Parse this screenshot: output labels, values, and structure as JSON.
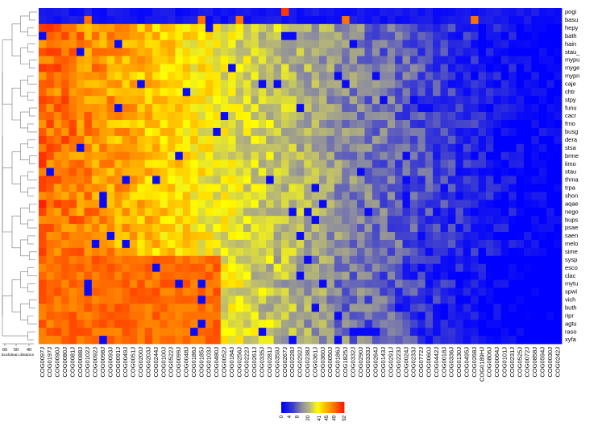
{
  "chart_data": {
    "type": "heatmap",
    "rows": [
      "pogi",
      "basu",
      "hepy",
      "bath",
      "hain",
      "stau_",
      "mypu",
      "myge",
      "mypn",
      "caje",
      "chtr",
      "stpy",
      "funu",
      "cacr",
      "frno",
      "busg",
      "dera",
      "stsa",
      "brme",
      "limo",
      "stau",
      "thma",
      "trpa",
      "shon",
      "aqae",
      "nego",
      "bups",
      "psae",
      "saen",
      "melo",
      "sime",
      "sysp",
      "esco",
      "clac",
      "mytu",
      "spwi",
      "vich",
      "buth",
      "ripr",
      "agtu",
      "raso",
      "xyfa"
    ],
    "columns": [
      "COG0097J",
      "COG0197J",
      "COG0090J",
      "COG0080J",
      "COG0081J",
      "COG0088J",
      "COG0102J",
      "COG0092J",
      "COG0098J",
      "COG0093J",
      "COG0091J",
      "COG0049J",
      "COG0051J",
      "COG0200J",
      "COG0203J",
      "COG0244J",
      "COG0100J",
      "COG0522J",
      "COG0099J",
      "COG0048J",
      "COG0186J",
      "COG0185J",
      "COG0103J",
      "COG0480J",
      "COG0052J",
      "COG0184J",
      "COG0256J",
      "COG0222J",
      "COG0261J",
      "COG0335J",
      "COG0281J",
      "COG0359J",
      "COG0267J",
      "COG0228J",
      "COG0292J",
      "COG0238J",
      "COG0361J",
      "COG0360J",
      "COG0050J",
      "COG0186J",
      "COG1825J",
      "COG0332J",
      "COG0290J",
      "COG0333J",
      "COG0264J",
      "COG0143J",
      "COG0291J",
      "COG0223J",
      "COG0024J",
      "COG0233J",
      "COG0772J",
      "COG0060J",
      "COG0442J",
      "COG0018J",
      "COG0336J",
      "COG0130J",
      "COG0495J",
      "COG0268J",
      "COG0189HJ",
      "COG0806J",
      "COG0064J",
      "COG0101J",
      "COG0231J",
      "COG0525J",
      "COG0072J",
      "COG0858J",
      "COG0594J",
      "COG0030J",
      "COG0242J"
    ],
    "color_key": {
      "ticks": [
        "0",
        "4",
        "8",
        "20",
        "41",
        "45",
        "49",
        "92"
      ],
      "colors": [
        "#0000ff",
        "#4a4ae0",
        "#8a8aa8",
        "#b8b880",
        "#e8e830",
        "#ffff00",
        "#ffb000",
        "#ff2000"
      ]
    },
    "xlabel": "",
    "ylabel": "",
    "dendrogram_axis": {
      "ticks": [
        "60",
        "50",
        "40"
      ],
      "label": "Euclidean distance"
    }
  }
}
